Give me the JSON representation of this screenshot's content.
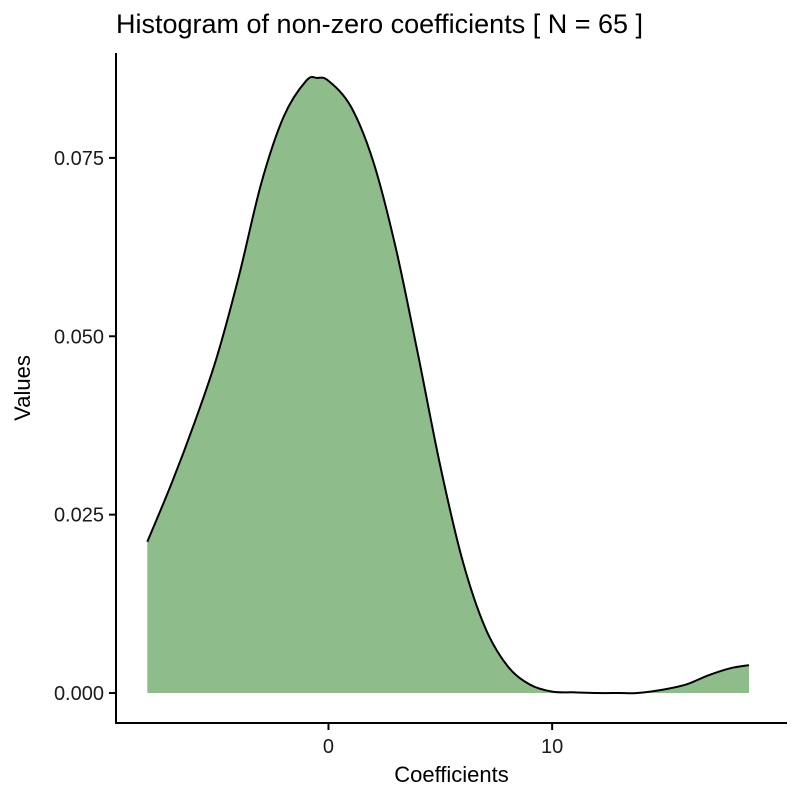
{
  "chart_data": {
    "type": "area",
    "title": "Histogram of non-zero coefficients [ N = 65 ]",
    "xlabel": "Coefficients",
    "ylabel": "Values",
    "xlim": [
      -9.5,
      20.5
    ],
    "ylim": [
      -0.0042,
      0.0897
    ],
    "x_ticks": [
      {
        "value": 0,
        "label": "0"
      },
      {
        "value": 10,
        "label": "10"
      }
    ],
    "y_ticks": [
      {
        "value": 0.0,
        "label": "0.000"
      },
      {
        "value": 0.025,
        "label": "0.025"
      },
      {
        "value": 0.05,
        "label": "0.050"
      },
      {
        "value": 0.075,
        "label": "0.075"
      }
    ],
    "grid": false,
    "legend": "none",
    "fill_color": "#8fbc8b",
    "line_color": "#000000",
    "series": [
      {
        "x": [
          -8.1,
          -7.0,
          -6.0,
          -5.0,
          -4.0,
          -3.0,
          -2.0,
          -1.0,
          -0.5,
          0.0,
          1.0,
          2.0,
          3.0,
          4.0,
          5.0,
          6.0,
          7.0,
          8.0,
          9.0,
          10.0,
          11.0,
          12.0,
          13.0,
          13.8,
          15.0,
          16.0,
          17.0,
          18.0,
          18.8
        ],
        "y": [
          0.0212,
          0.0295,
          0.0378,
          0.047,
          0.0585,
          0.0715,
          0.0808,
          0.0858,
          0.0862,
          0.0858,
          0.0822,
          0.0745,
          0.0625,
          0.0475,
          0.0318,
          0.0185,
          0.0092,
          0.0038,
          0.0012,
          0.0002,
          0.0001,
          0.0,
          0.0,
          0.0,
          0.0005,
          0.0012,
          0.0025,
          0.0035,
          0.0039
        ]
      }
    ]
  }
}
